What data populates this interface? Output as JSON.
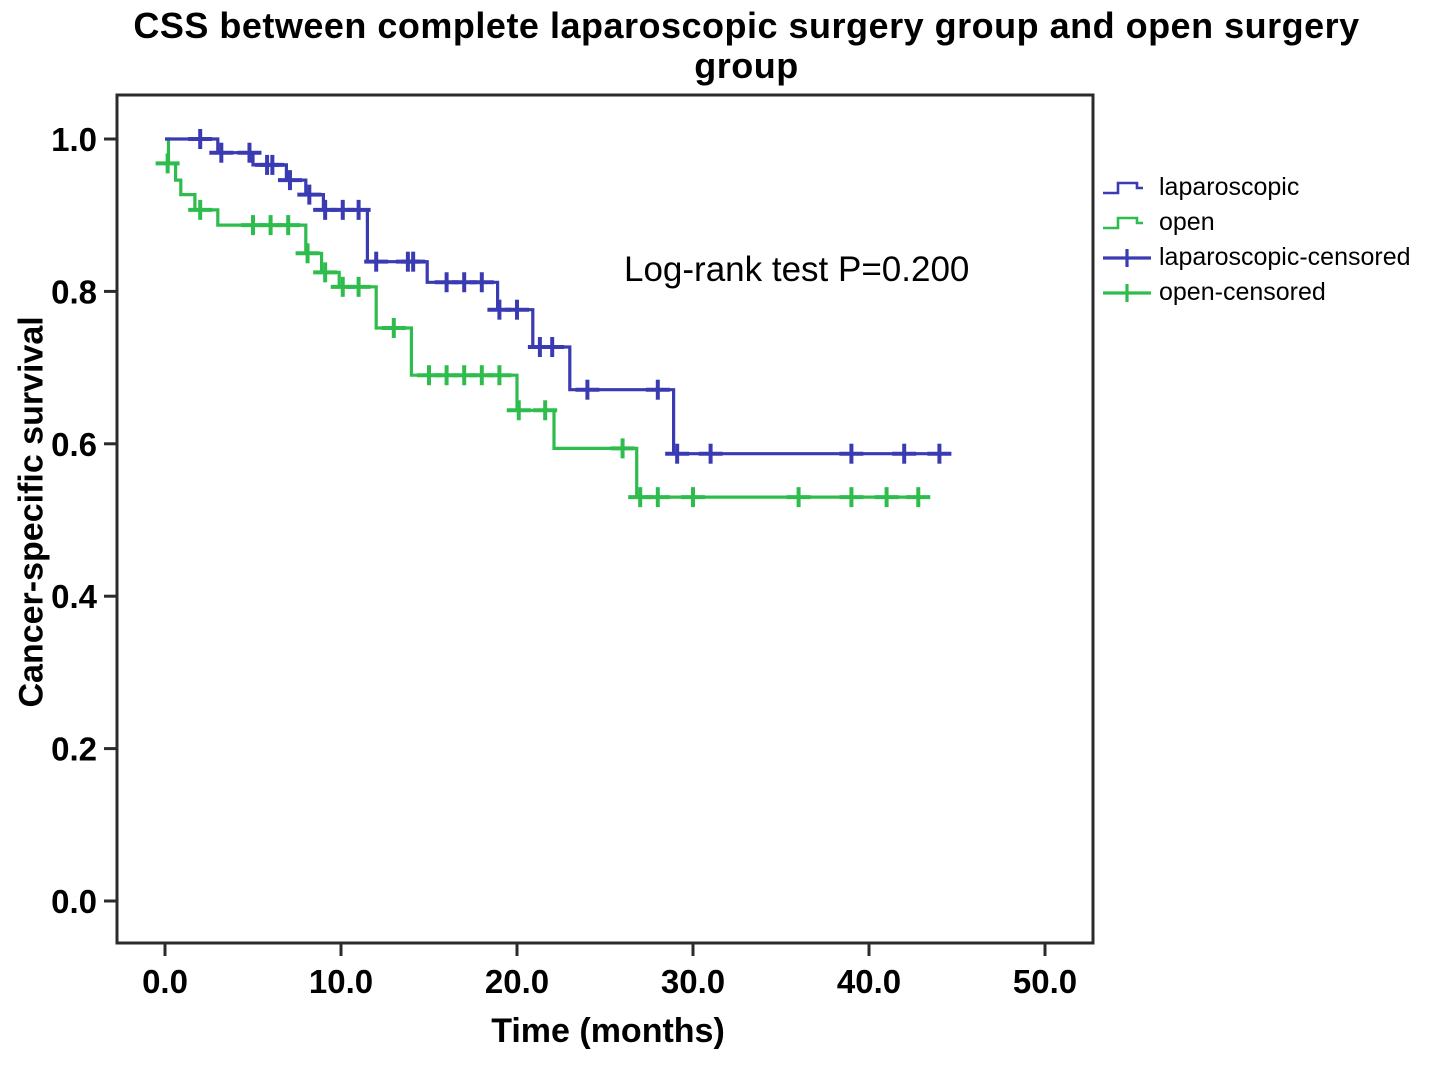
{
  "chart_data": {
    "type": "line",
    "subtype": "kaplan-meier-step",
    "title": "CSS between complete laparoscopic surgery group and open surgery group",
    "title_lines": [
      "CSS between complete laparoscopic surgery group and open surgery",
      "group"
    ],
    "xlabel": "Time (months)",
    "ylabel": "Cancer-specific survival",
    "xlim": [
      0,
      52.7
    ],
    "ylim": [
      0.0,
      1.05
    ],
    "x_ticks": [
      {
        "label": "0.0",
        "value": 0
      },
      {
        "label": "10.0",
        "value": 10
      },
      {
        "label": "20.0",
        "value": 20
      },
      {
        "label": "30.0",
        "value": 30
      },
      {
        "label": "40.0",
        "value": 40
      },
      {
        "label": "50.0",
        "value": 50
      }
    ],
    "y_ticks": [
      {
        "label": "0.0",
        "value": 0.0
      },
      {
        "label": "0.2",
        "value": 0.2
      },
      {
        "label": "0.4",
        "value": 0.4
      },
      {
        "label": "0.6",
        "value": 0.6
      },
      {
        "label": "0.8",
        "value": 0.8
      },
      {
        "label": "1.0",
        "value": 1.0
      }
    ],
    "annotation": "Log-rank test P=0.200",
    "log_rank_p": "0.200",
    "grid": false,
    "legend_position": "right",
    "legend": [
      {
        "label": "laparoscopic",
        "type": "step",
        "series": "laparoscopic"
      },
      {
        "label": "open",
        "type": "step",
        "series": "open"
      },
      {
        "label": "laparoscopic-censored",
        "type": "censored",
        "series": "laparoscopic"
      },
      {
        "label": "open-censored",
        "type": "censored",
        "series": "open"
      }
    ],
    "series": [
      {
        "name": "laparoscopic",
        "color": "#3a3ab2",
        "start": [
          0,
          1.0
        ],
        "end_time": 44.1,
        "steps": [
          [
            3.0,
            0.982
          ],
          [
            5.0,
            0.966
          ],
          [
            6.9,
            0.946
          ],
          [
            8.0,
            0.927
          ],
          [
            9.0,
            0.907
          ],
          [
            11.5,
            0.839
          ],
          [
            14.9,
            0.812
          ],
          [
            18.9,
            0.776
          ],
          [
            20.9,
            0.727
          ],
          [
            23.0,
            0.671
          ],
          [
            28.9,
            0.587
          ]
        ],
        "censored": [
          [
            2.0,
            1.0
          ],
          [
            3.2,
            0.982
          ],
          [
            4.8,
            0.982
          ],
          [
            5.8,
            0.966
          ],
          [
            6.1,
            0.966
          ],
          [
            7.1,
            0.946
          ],
          [
            8.2,
            0.927
          ],
          [
            9.1,
            0.907
          ],
          [
            10.1,
            0.907
          ],
          [
            11.0,
            0.907
          ],
          [
            12.0,
            0.839
          ],
          [
            13.8,
            0.839
          ],
          [
            14.1,
            0.839
          ],
          [
            16.0,
            0.812
          ],
          [
            17.0,
            0.812
          ],
          [
            18.0,
            0.812
          ],
          [
            19.0,
            0.776
          ],
          [
            20.0,
            0.776
          ],
          [
            21.3,
            0.727
          ],
          [
            22.0,
            0.727
          ],
          [
            24.0,
            0.671
          ],
          [
            28.0,
            0.671
          ],
          [
            29.1,
            0.587
          ],
          [
            31.0,
            0.587
          ],
          [
            39.0,
            0.587
          ],
          [
            42.0,
            0.587
          ],
          [
            44.0,
            0.587
          ]
        ]
      },
      {
        "name": "open",
        "color": "#2ebd4d",
        "start": [
          0,
          1.0
        ],
        "end_time": 43.0,
        "steps": [
          [
            0.2,
            0.968
          ],
          [
            0.6,
            0.946
          ],
          [
            0.9,
            0.927
          ],
          [
            1.7,
            0.907
          ],
          [
            3.0,
            0.887
          ],
          [
            8.0,
            0.85
          ],
          [
            8.9,
            0.825
          ],
          [
            9.9,
            0.806
          ],
          [
            12.0,
            0.752
          ],
          [
            14.0,
            0.69
          ],
          [
            20.0,
            0.644
          ],
          [
            22.1,
            0.594
          ],
          [
            26.8,
            0.53
          ]
        ],
        "censored": [
          [
            0.15,
            0.968
          ],
          [
            2.0,
            0.907
          ],
          [
            5.0,
            0.887
          ],
          [
            6.0,
            0.887
          ],
          [
            7.0,
            0.887
          ],
          [
            8.1,
            0.85
          ],
          [
            9.1,
            0.825
          ],
          [
            10.1,
            0.806
          ],
          [
            11.0,
            0.806
          ],
          [
            13.0,
            0.752
          ],
          [
            15.0,
            0.69
          ],
          [
            16.0,
            0.69
          ],
          [
            17.0,
            0.69
          ],
          [
            18.0,
            0.69
          ],
          [
            19.0,
            0.69
          ],
          [
            20.1,
            0.644
          ],
          [
            21.6,
            0.644
          ],
          [
            26.0,
            0.594
          ],
          [
            27.0,
            0.53
          ],
          [
            28.0,
            0.53
          ],
          [
            30.0,
            0.53
          ],
          [
            36.0,
            0.53
          ],
          [
            39.0,
            0.53
          ],
          [
            41.0,
            0.53
          ],
          [
            42.8,
            0.53
          ]
        ]
      }
    ],
    "colors": {
      "laparoscopic": "#3a3ab2",
      "open": "#2ebd4d",
      "axis": "#2b2b2b",
      "text": "#000000",
      "background": "#ffffff"
    }
  }
}
